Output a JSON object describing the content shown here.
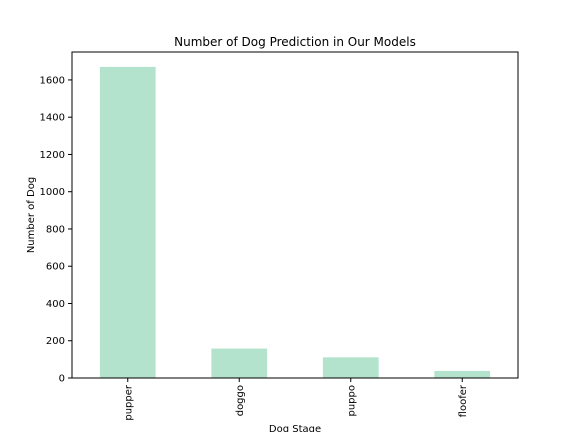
{
  "chart_data": {
    "type": "bar",
    "title": "Number of Dog Prediction in Our Models",
    "xlabel": "Dog Stage",
    "ylabel": "Number of Dog",
    "categories": [
      "pupper",
      "doggo",
      "puppo",
      "floofer"
    ],
    "values": [
      1670,
      158,
      111,
      38
    ],
    "ylim": [
      0,
      1750
    ],
    "yticks": [
      0,
      200,
      400,
      600,
      800,
      1000,
      1200,
      1400,
      1600
    ],
    "xtick_rotation": 90,
    "grid": false,
    "legend": "none",
    "bar_color": "#b3e2cd",
    "axis_color": "#000000"
  }
}
